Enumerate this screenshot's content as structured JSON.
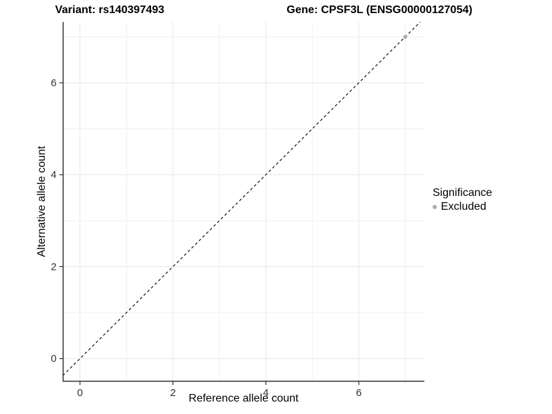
{
  "chart_data": {
    "type": "scatter",
    "titles": {
      "left": "Variant: rs140397493",
      "right": "Gene: CPSF3L (ENSG00000127054)"
    },
    "xlabel": "Reference allele count",
    "ylabel": "Alternative allele count",
    "x_ticks": [
      0,
      2,
      4,
      6
    ],
    "y_ticks": [
      0,
      2,
      4,
      6
    ],
    "minor_ticks": [
      1,
      3,
      5,
      7
    ],
    "xlim": [
      -0.37,
      7.41
    ],
    "ylim": [
      -0.5,
      7.32
    ],
    "grid": "on",
    "reference_line": {
      "type": "identity",
      "equation": "y = x",
      "style": "dashed",
      "color": "#111111"
    },
    "series": [
      {
        "name": "Excluded",
        "color": "#aaaaaa",
        "points": [
          {
            "x": 7,
            "y": 7
          }
        ]
      }
    ],
    "legend": {
      "title": "Significance",
      "position": "right"
    }
  },
  "style": {
    "background": "#ffffff",
    "grid_major_color": "#e6e6e6",
    "grid_minor_color": "#efefef",
    "axis_line_color": "#2f2f2f",
    "tick_label_color": "#333333",
    "tick_label_size": 15,
    "point_radius": 2.8
  }
}
